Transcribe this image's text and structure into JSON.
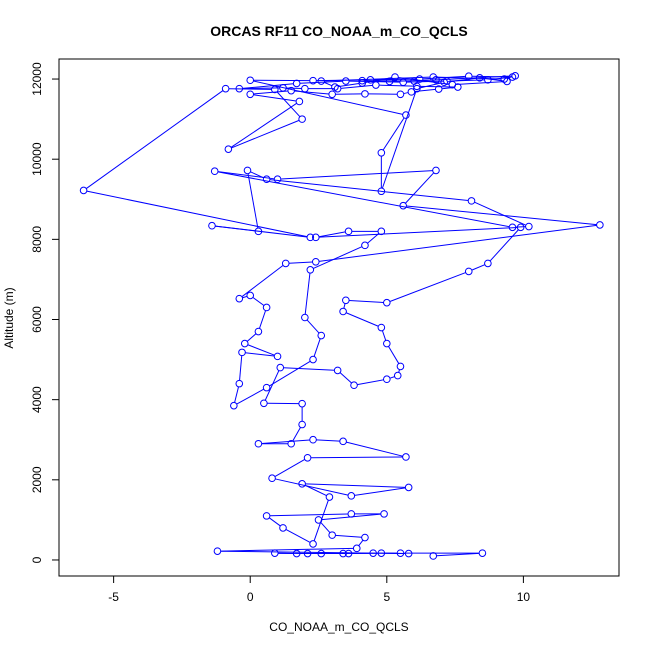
{
  "chart_data": {
    "type": "line",
    "title": "ORCAS RF11 CO_NOAA_m_CO_QCLS",
    "xlabel": "CO_NOAA_m_CO_QCLS",
    "ylabel": "Altitude (m)",
    "xlim": [
      -7,
      13.5
    ],
    "ylim": [
      -400,
      12500
    ],
    "x_ticks": [
      -5,
      0,
      5,
      10
    ],
    "x_tick_labels": [
      "-5",
      "0",
      "5",
      "10"
    ],
    "y_ticks": [
      0,
      2000,
      4000,
      6000,
      8000,
      10000,
      12000
    ],
    "y_tick_labels": [
      "0",
      "2000",
      "4000",
      "6000",
      "8000",
      "10000",
      "12000"
    ],
    "grid": false,
    "legend": "none",
    "markers": "open-circle",
    "color": "#0000ff",
    "series": [
      {
        "values": [
          {
            "x": 6.7,
            "y": 100
          },
          {
            "x": 8.5,
            "y": 170
          },
          {
            "x": 5.5,
            "y": 170
          },
          {
            "x": 4.5,
            "y": 170
          },
          {
            "x": 3.4,
            "y": 160
          },
          {
            "x": 2.1,
            "y": 160
          },
          {
            "x": 0.9,
            "y": 170
          },
          {
            "x": 1.7,
            "y": 160
          },
          {
            "x": 2.6,
            "y": 160
          },
          {
            "x": 3.6,
            "y": 160
          },
          {
            "x": 4.8,
            "y": 170
          },
          {
            "x": 5.8,
            "y": 160
          },
          {
            "x": -1.2,
            "y": 220
          },
          {
            "x": 3.9,
            "y": 290
          },
          {
            "x": 4.2,
            "y": 560
          },
          {
            "x": 3.0,
            "y": 620
          },
          {
            "x": 2.5,
            "y": 1000
          },
          {
            "x": 4.9,
            "y": 1150
          },
          {
            "x": 3.7,
            "y": 1150
          },
          {
            "x": 0.6,
            "y": 1100
          },
          {
            "x": 1.2,
            "y": 800
          },
          {
            "x": 2.3,
            "y": 400
          },
          {
            "x": 2.9,
            "y": 1570
          },
          {
            "x": 1.9,
            "y": 1900
          },
          {
            "x": 5.8,
            "y": 1810
          },
          {
            "x": 3.7,
            "y": 1600
          },
          {
            "x": 0.8,
            "y": 2040
          },
          {
            "x": 2.1,
            "y": 2550
          },
          {
            "x": 5.7,
            "y": 2570
          },
          {
            "x": 3.4,
            "y": 2960
          },
          {
            "x": 2.3,
            "y": 3000
          },
          {
            "x": 0.3,
            "y": 2900
          },
          {
            "x": 1.5,
            "y": 2900
          },
          {
            "x": 1.9,
            "y": 3380
          },
          {
            "x": 1.9,
            "y": 3900
          },
          {
            "x": 0.5,
            "y": 3910
          },
          {
            "x": 1.1,
            "y": 4800
          },
          {
            "x": 3.2,
            "y": 4730
          },
          {
            "x": 3.8,
            "y": 4360
          },
          {
            "x": 5.0,
            "y": 4510
          },
          {
            "x": 5.4,
            "y": 4600
          },
          {
            "x": 5.5,
            "y": 4830
          },
          {
            "x": 5.0,
            "y": 5400
          },
          {
            "x": 4.8,
            "y": 5800
          },
          {
            "x": 3.4,
            "y": 6200
          },
          {
            "x": 3.5,
            "y": 6480
          },
          {
            "x": 5.0,
            "y": 6420
          },
          {
            "x": 8.0,
            "y": 7200
          },
          {
            "x": 8.7,
            "y": 7400
          },
          {
            "x": 9.9,
            "y": 8300
          },
          {
            "x": 2.4,
            "y": 8050
          },
          {
            "x": 3.6,
            "y": 8200
          },
          {
            "x": 4.8,
            "y": 8200
          },
          {
            "x": 4.2,
            "y": 7850
          },
          {
            "x": 2.2,
            "y": 7240
          },
          {
            "x": 2.0,
            "y": 6050
          },
          {
            "x": 2.6,
            "y": 5600
          },
          {
            "x": 2.3,
            "y": 5000
          },
          {
            "x": 0.6,
            "y": 4300
          },
          {
            "x": -0.6,
            "y": 3850
          },
          {
            "x": -0.4,
            "y": 4400
          },
          {
            "x": -0.3,
            "y": 5180
          },
          {
            "x": 1.0,
            "y": 5080
          },
          {
            "x": -0.2,
            "y": 5400
          },
          {
            "x": 0.3,
            "y": 5700
          },
          {
            "x": 0.6,
            "y": 6300
          },
          {
            "x": 0.0,
            "y": 6600
          },
          {
            "x": -0.4,
            "y": 6520
          },
          {
            "x": 1.3,
            "y": 7400
          },
          {
            "x": 2.4,
            "y": 7440
          },
          {
            "x": 12.8,
            "y": 8360
          },
          {
            "x": 5.6,
            "y": 8840
          },
          {
            "x": 6.8,
            "y": 9720
          },
          {
            "x": 1.0,
            "y": 9500
          },
          {
            "x": -1.3,
            "y": 9700
          },
          {
            "x": 9.6,
            "y": 8300
          },
          {
            "x": 10.2,
            "y": 8320
          },
          {
            "x": 8.1,
            "y": 8960
          },
          {
            "x": 0.6,
            "y": 9500
          },
          {
            "x": -0.1,
            "y": 9720
          },
          {
            "x": 0.3,
            "y": 8200
          },
          {
            "x": -1.4,
            "y": 8340
          },
          {
            "x": 2.2,
            "y": 8050
          },
          {
            "x": -6.1,
            "y": 9220
          },
          {
            "x": -0.9,
            "y": 11760
          },
          {
            "x": 0.9,
            "y": 11740
          },
          {
            "x": 1.9,
            "y": 11000
          },
          {
            "x": -0.8,
            "y": 10250
          },
          {
            "x": 1.8,
            "y": 11440
          },
          {
            "x": 0.0,
            "y": 11620
          },
          {
            "x": 1.5,
            "y": 11710
          },
          {
            "x": 3.0,
            "y": 11620
          },
          {
            "x": 4.2,
            "y": 11630
          },
          {
            "x": 5.5,
            "y": 11620
          },
          {
            "x": 5.9,
            "y": 11680
          },
          {
            "x": 6.9,
            "y": 11750
          },
          {
            "x": 7.6,
            "y": 11800
          },
          {
            "x": 6.1,
            "y": 11820
          },
          {
            "x": 4.6,
            "y": 11850
          },
          {
            "x": 3.2,
            "y": 11760
          },
          {
            "x": 2.0,
            "y": 11760
          },
          {
            "x": 1.2,
            "y": 11780
          },
          {
            "x": -0.4,
            "y": 11760
          },
          {
            "x": 1.7,
            "y": 11890
          },
          {
            "x": 3.5,
            "y": 11950
          },
          {
            "x": 5.6,
            "y": 11920
          },
          {
            "x": 7.2,
            "y": 11950
          },
          {
            "x": 8.7,
            "y": 11980
          },
          {
            "x": 9.6,
            "y": 12050
          },
          {
            "x": 8.0,
            "y": 12070
          },
          {
            "x": 6.2,
            "y": 12000
          },
          {
            "x": 4.4,
            "y": 11980
          },
          {
            "x": 2.3,
            "y": 11960
          },
          {
            "x": 0.0,
            "y": 11970
          },
          {
            "x": 5.7,
            "y": 11100
          },
          {
            "x": 4.8,
            "y": 10160
          },
          {
            "x": 4.8,
            "y": 9200
          },
          {
            "x": 6.1,
            "y": 11760
          },
          {
            "x": 7.1,
            "y": 11920
          },
          {
            "x": 8.4,
            "y": 12030
          },
          {
            "x": 9.4,
            "y": 11940
          },
          {
            "x": 7.4,
            "y": 11860
          },
          {
            "x": 5.3,
            "y": 12050
          },
          {
            "x": 4.1,
            "y": 11900
          },
          {
            "x": 3.1,
            "y": 11800
          },
          {
            "x": 2.6,
            "y": 11950
          },
          {
            "x": 6.7,
            "y": 12050
          },
          {
            "x": 9.3,
            "y": 12000
          },
          {
            "x": 9.7,
            "y": 12080
          },
          {
            "x": 6.0,
            "y": 11950
          },
          {
            "x": 4.1,
            "y": 11960
          },
          {
            "x": 5.1,
            "y": 11940
          },
          {
            "x": 6.8,
            "y": 11980
          }
        ]
      }
    ]
  }
}
